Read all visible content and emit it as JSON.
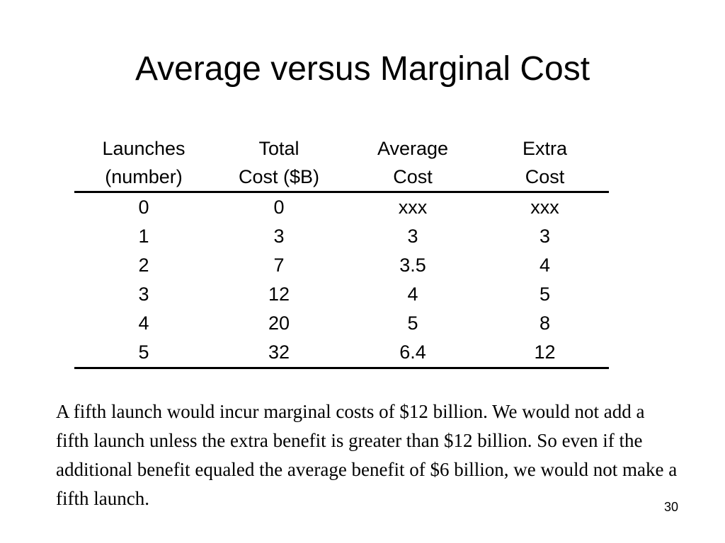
{
  "slide": {
    "title": "Average versus Marginal Cost",
    "table": {
      "headers": [
        {
          "line1": "Launches",
          "line2": "(number)"
        },
        {
          "line1": "Total",
          "line2": "Cost ($B)"
        },
        {
          "line1": "Average",
          "line2": "Cost"
        },
        {
          "line1": "Extra",
          "line2": "Cost"
        }
      ],
      "rows": [
        [
          "0",
          "0",
          "xxx",
          "xxx"
        ],
        [
          "1",
          "3",
          "3",
          "3"
        ],
        [
          "2",
          "7",
          "3.5",
          "4"
        ],
        [
          "3",
          "12",
          "4",
          "5"
        ],
        [
          "4",
          "20",
          "5",
          "8"
        ],
        [
          "5",
          "32",
          "6.4",
          "12"
        ]
      ]
    },
    "paragraph": "A fifth launch would incur marginal costs of $12 billion.   We would not add a fifth launch unless the extra benefit is greater than $12 billion.  So even if the additional benefit equaled the average benefit of $6 billion, we would not make a fifth launch.",
    "page_number": "30"
  }
}
